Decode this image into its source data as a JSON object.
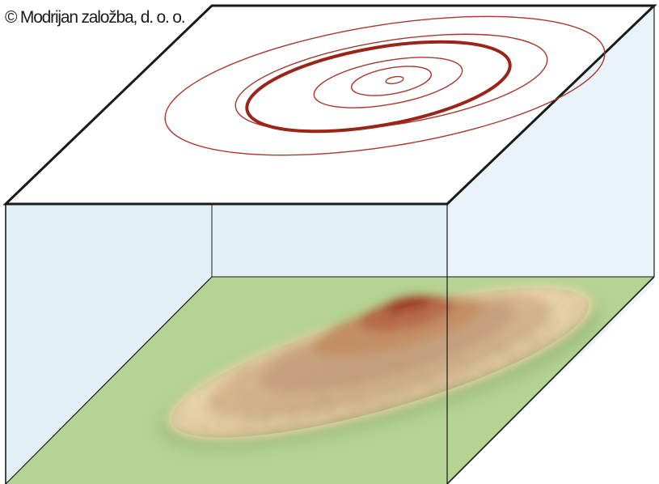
{
  "copyright_text": "© Modrijan založba, d. o. o.",
  "colors": {
    "contour_line": "#a8372a",
    "index_contour_line": "#9b2418",
    "ground": "#b5d392",
    "wall_fill": "#e4f0f8",
    "box_edge": "#1a1a1a",
    "hill_base": "#f0d9ac",
    "hill_top": "#b2432b"
  },
  "figure": {
    "description_labels": [],
    "contour_levels": 6,
    "index_contour_level": 4
  }
}
